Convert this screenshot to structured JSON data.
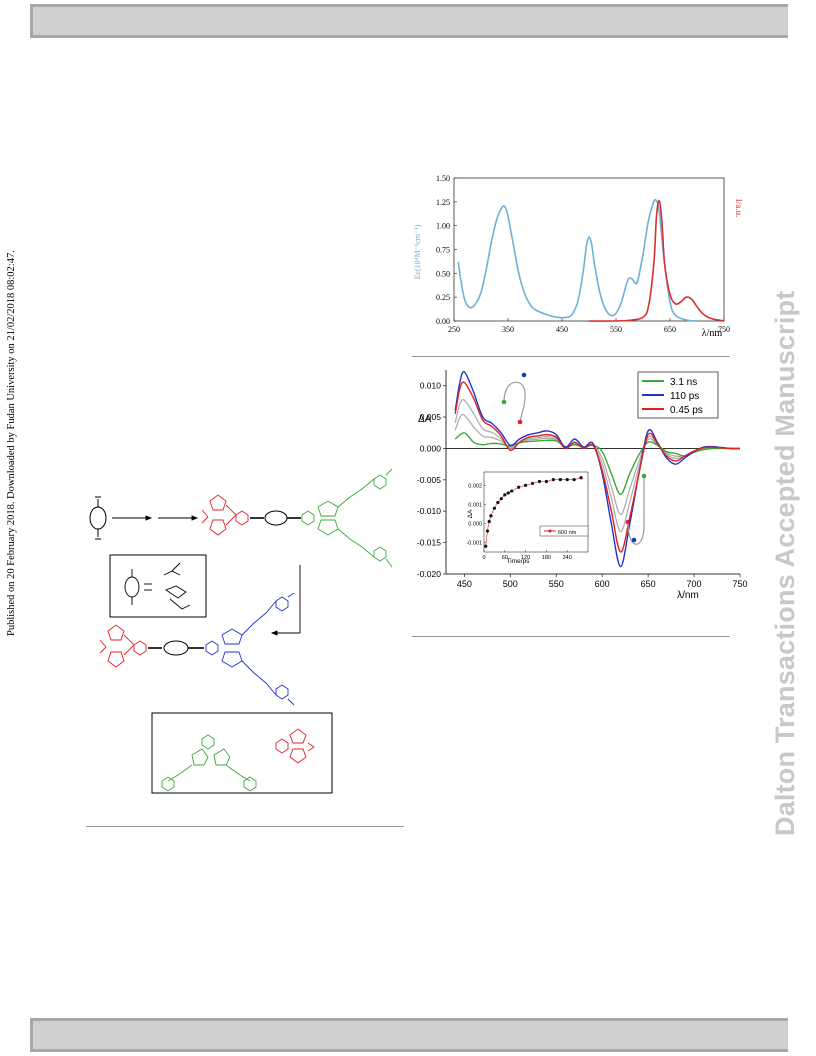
{
  "side": {
    "published": "Published on 20 February 2018. Downloaded by Fudan University on 21/02/2018 08:02:47.",
    "watermark": "Dalton Transactions Accepted Manuscript"
  },
  "colors": {
    "absorption": "#6fb0d6",
    "emission": "#d83030",
    "green": "#3aa83a",
    "red": "#e02020",
    "blue": "#2233cc",
    "gray": "#999999"
  },
  "chart_data": [
    {
      "type": "line",
      "xlabel": "λ/nm",
      "ylabel_left": "Eε(10⁴M⁻¹cm⁻¹)",
      "ylabel_right": "I/a.u.",
      "xticks": [
        "250",
        "350",
        "450",
        "550",
        "650",
        "750"
      ],
      "yticks": [
        "0.00",
        "0.25",
        "0.50",
        "0.75",
        "1.00",
        "1.25",
        "1.50"
      ],
      "xlim": [
        250,
        750
      ],
      "ylim": [
        0,
        1.5
      ],
      "series": [
        {
          "name": "",
          "color": "#6fb0d6",
          "x": [
            258,
            262,
            270,
            280,
            290,
            300,
            310,
            320,
            330,
            340,
            345,
            350,
            360,
            370,
            380,
            390,
            400,
            420,
            440,
            460,
            470,
            480,
            490,
            495,
            500,
            505,
            510,
            520,
            530,
            540,
            550,
            560,
            570,
            575,
            580,
            585,
            590,
            600,
            610,
            620,
            625,
            630,
            640,
            650,
            660,
            680,
            700
          ],
          "y": [
            0.62,
            0.45,
            0.22,
            0.14,
            0.18,
            0.3,
            0.55,
            0.85,
            1.08,
            1.2,
            1.19,
            1.1,
            0.8,
            0.5,
            0.3,
            0.18,
            0.12,
            0.07,
            0.04,
            0.04,
            0.08,
            0.22,
            0.55,
            0.78,
            0.88,
            0.8,
            0.6,
            0.3,
            0.13,
            0.06,
            0.08,
            0.2,
            0.4,
            0.45,
            0.44,
            0.4,
            0.42,
            0.7,
            1.05,
            1.25,
            1.26,
            1.15,
            0.6,
            0.2,
            0.06,
            0.01,
            0.0
          ]
        },
        {
          "name": "",
          "color": "#d83030",
          "x": [
            500,
            550,
            580,
            600,
            610,
            620,
            625,
            630,
            635,
            640,
            650,
            660,
            670,
            680,
            690,
            700,
            710,
            720,
            730,
            740,
            750
          ],
          "y": [
            0.0,
            0.0,
            0.01,
            0.04,
            0.15,
            0.6,
            1.1,
            1.26,
            1.05,
            0.6,
            0.28,
            0.18,
            0.2,
            0.25,
            0.23,
            0.15,
            0.08,
            0.04,
            0.02,
            0.01,
            0.0
          ]
        }
      ]
    },
    {
      "type": "line",
      "xlabel": "λ/nm",
      "ylabel": "ΔA",
      "xticks": [
        "450",
        "500",
        "550",
        "600",
        "650",
        "700",
        "750"
      ],
      "yticks": [
        "0.010",
        "0.005",
        "0.000",
        "-0.005",
        "-0.010",
        "-0.015",
        "-0.020"
      ],
      "xlim": [
        430,
        750
      ],
      "ylim": [
        -0.02,
        0.0125
      ],
      "legend": "top-right",
      "series": [
        {
          "name": "3.1 ns",
          "color": "#3aa83a",
          "x": [
            440,
            450,
            460,
            470,
            480,
            490,
            500,
            510,
            520,
            530,
            540,
            550,
            560,
            570,
            580,
            590,
            600,
            610,
            620,
            630,
            640,
            650,
            660,
            670,
            680,
            690,
            700,
            710,
            720,
            740,
            750
          ],
          "y": [
            0.0015,
            0.0025,
            0.001,
            0.0006,
            0.0008,
            0.0007,
            0.0004,
            0.0009,
            0.0011,
            0.0012,
            0.0013,
            0.0012,
            0.0003,
            0.0006,
            0.0002,
            0.0005,
            -0.0005,
            -0.004,
            -0.0073,
            -0.004,
            -0.001,
            0.001,
            0.0005,
            -0.0005,
            -0.0008,
            -0.0012,
            -0.0006,
            -0.0002,
            0.0,
            0.0,
            0.0
          ]
        },
        {
          "name": "110 ps",
          "color": "#2233cc",
          "x": [
            440,
            445,
            450,
            460,
            470,
            480,
            490,
            500,
            510,
            520,
            530,
            540,
            550,
            560,
            570,
            580,
            590,
            600,
            610,
            620,
            630,
            640,
            650,
            660,
            670,
            680,
            690,
            700,
            710,
            720,
            740,
            750
          ],
          "y": [
            0.006,
            0.0105,
            0.0122,
            0.009,
            0.005,
            0.004,
            0.0025,
            0.0005,
            0.0015,
            0.0022,
            0.0025,
            0.0028,
            0.0022,
            0.0002,
            0.0015,
            0.0002,
            0.0008,
            -0.004,
            -0.012,
            -0.0188,
            -0.012,
            -0.004,
            0.0028,
            0.001,
            -0.0015,
            -0.0025,
            -0.0015,
            -0.0005,
            0.0002,
            0.0003,
            0.0,
            0.0
          ]
        },
        {
          "name": "0.45 ps",
          "color": "#e02020",
          "x": [
            440,
            445,
            450,
            460,
            470,
            480,
            490,
            500,
            510,
            520,
            530,
            540,
            550,
            560,
            570,
            580,
            590,
            600,
            610,
            620,
            630,
            640,
            650,
            660,
            670,
            680,
            690,
            700,
            710,
            720,
            740,
            750
          ],
          "y": [
            0.0055,
            0.0095,
            0.0105,
            0.008,
            0.0045,
            0.0035,
            0.002,
            -0.0003,
            0.001,
            0.0018,
            0.002,
            0.0022,
            0.0018,
            0.0,
            0.001,
            0.0,
            0.0005,
            -0.0035,
            -0.01,
            -0.0165,
            -0.011,
            -0.004,
            0.0022,
            0.0008,
            -0.0012,
            -0.002,
            -0.0012,
            -0.0004,
            0.0001,
            0.0002,
            0.0,
            0.0
          ]
        }
      ],
      "inset": {
        "xlabel": "Time/ps",
        "ylabel": "ΔA",
        "legend": "600 nm",
        "xticks": [
          "0",
          "60",
          "120",
          "180",
          "240"
        ],
        "yticks": [
          "0.002",
          "0.001",
          "0.000",
          "-0.001"
        ],
        "xlim": [
          0,
          300
        ],
        "ylim": [
          -0.0015,
          0.0027
        ],
        "x": [
          5,
          10,
          15,
          20,
          30,
          40,
          50,
          60,
          70,
          80,
          100,
          120,
          140,
          160,
          180,
          200,
          220,
          240,
          260,
          280
        ],
        "y": [
          -0.0012,
          -0.0004,
          0.0001,
          0.0004,
          0.0008,
          0.0011,
          0.0013,
          0.0015,
          0.0016,
          0.0017,
          0.0019,
          0.002,
          0.0021,
          0.0022,
          0.0022,
          0.0023,
          0.0023,
          0.0023,
          0.0023,
          0.0024
        ]
      }
    }
  ]
}
